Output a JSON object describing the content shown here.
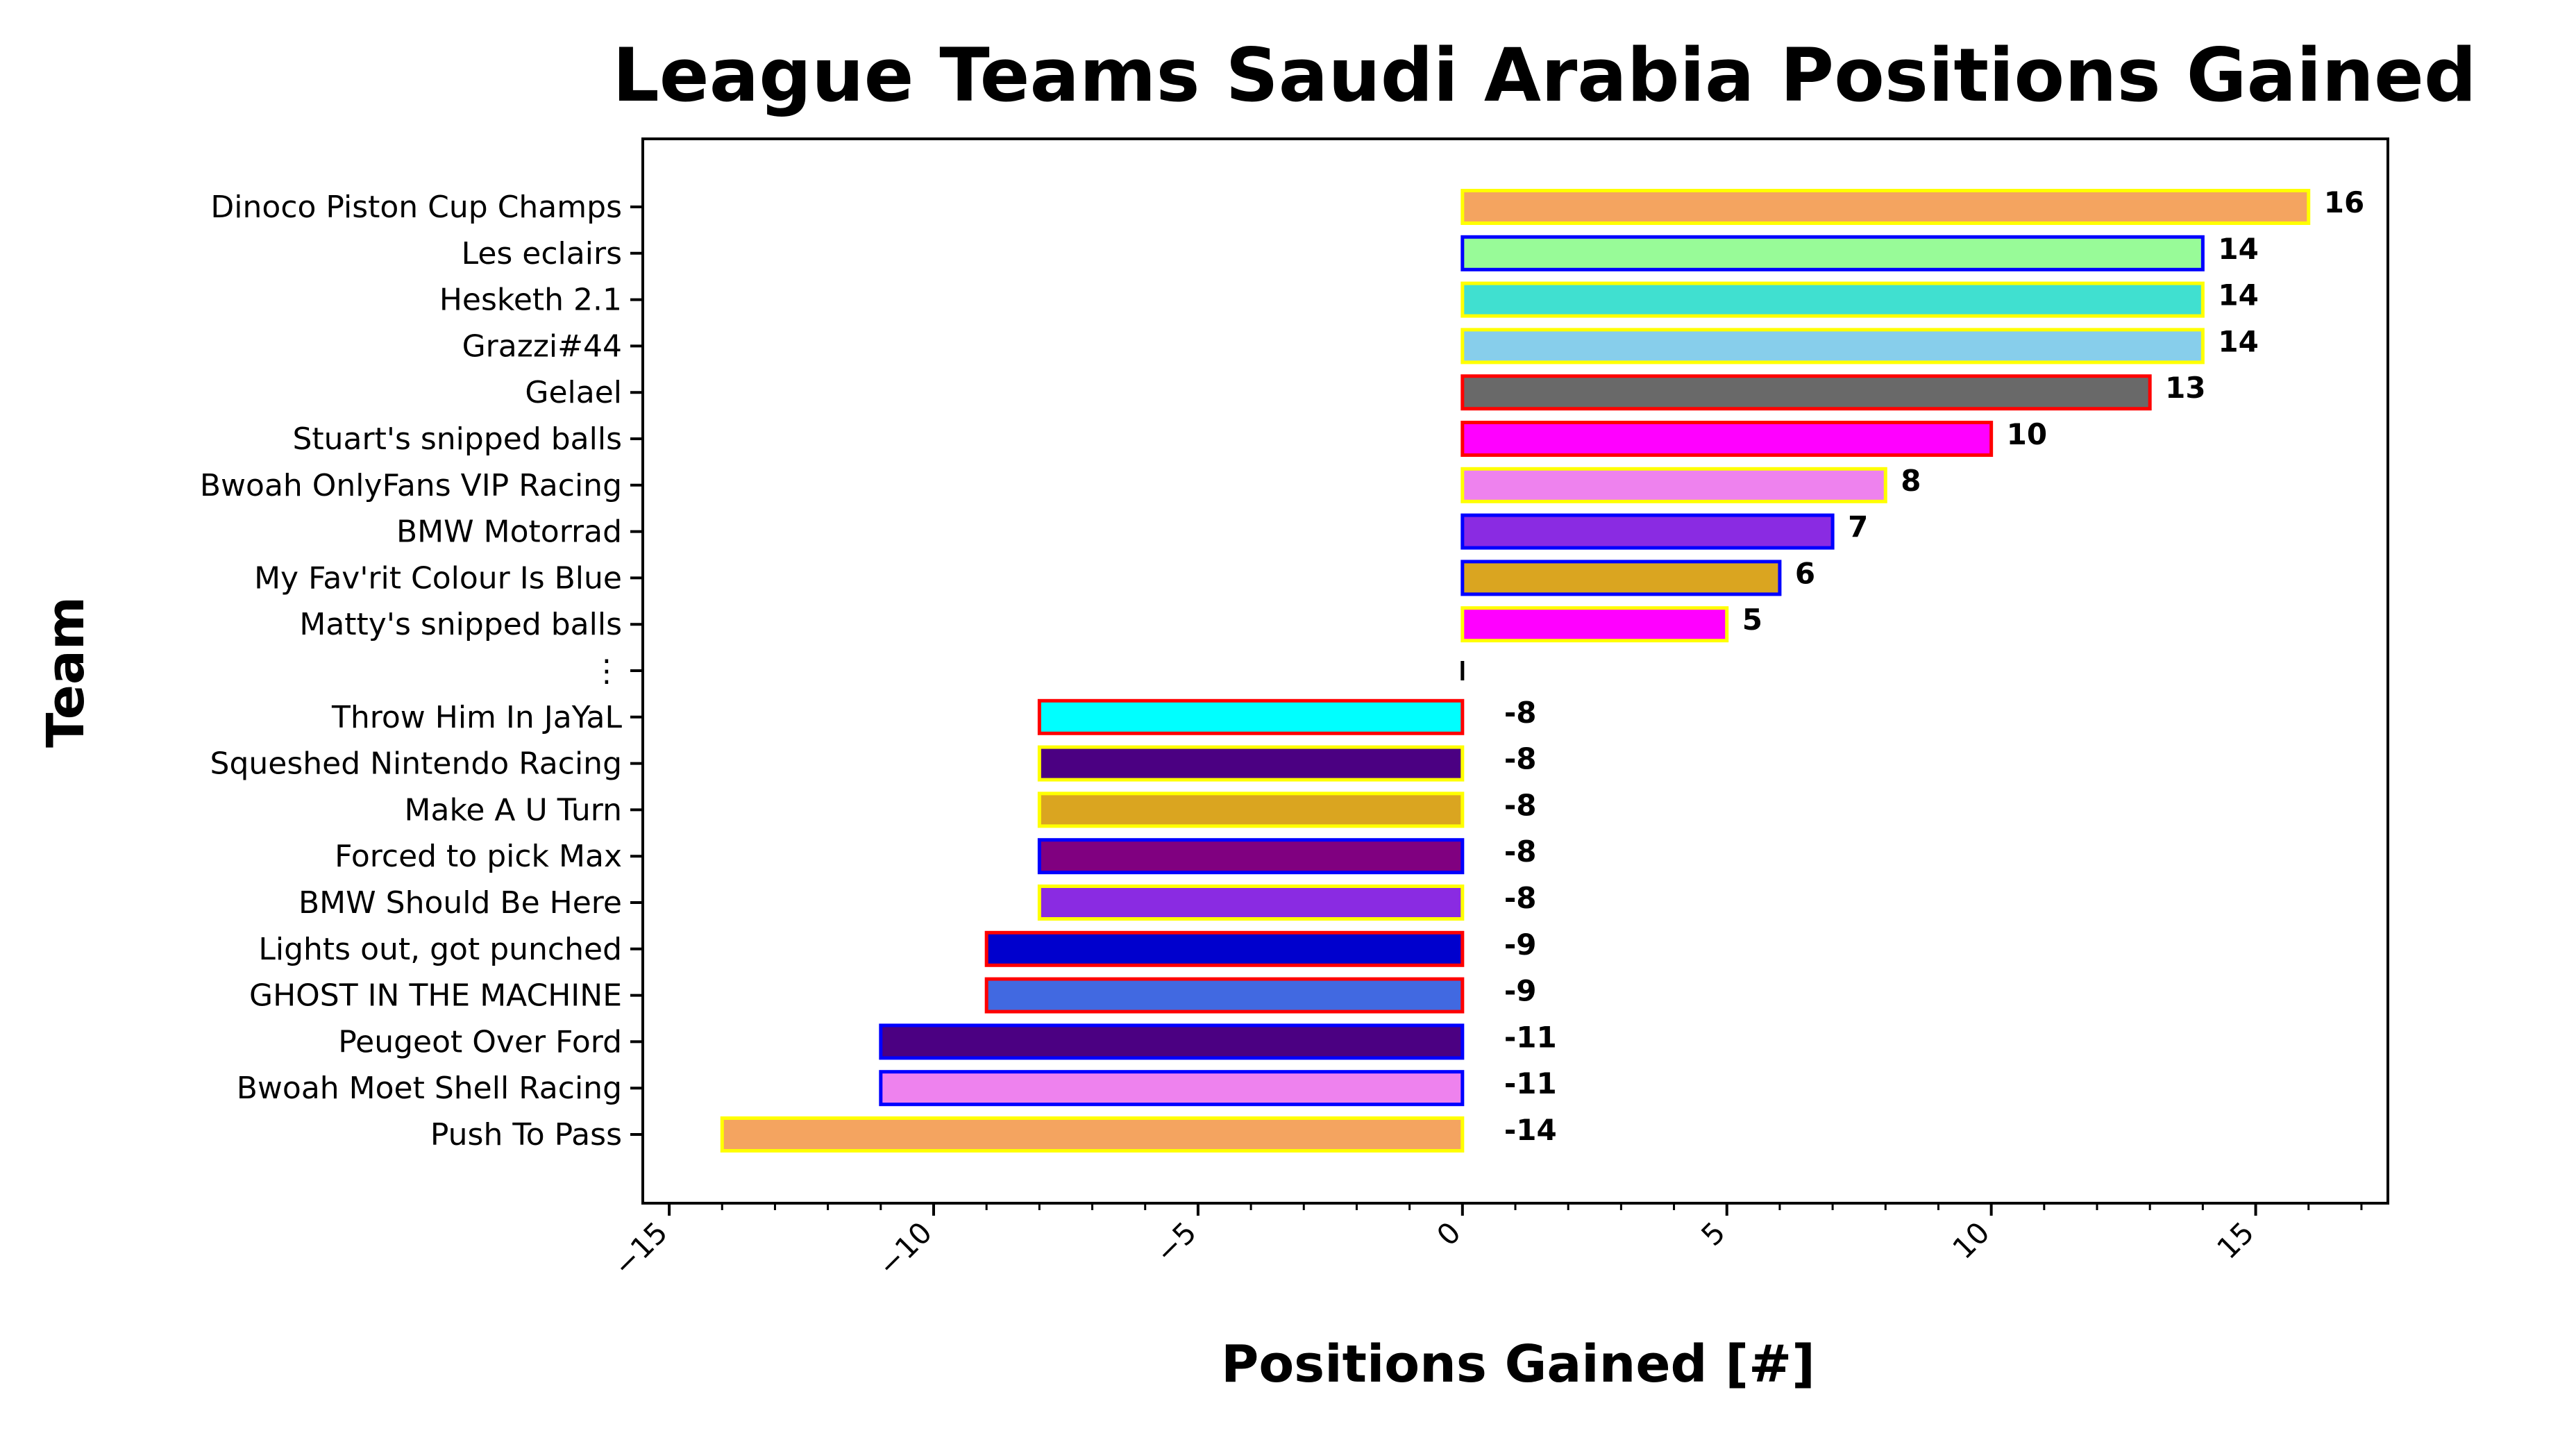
{
  "chart_data": {
    "type": "bar",
    "orientation": "horizontal",
    "title": "League Teams Saudi Arabia Positions Gained",
    "xlabel": "Positions Gained [#]",
    "ylabel": "Team",
    "xlim": [
      -15.5,
      17.5
    ],
    "xticks": [
      -15,
      -10,
      -5,
      0,
      5,
      10,
      15
    ],
    "xtick_labels": [
      "−15",
      "−10",
      "−5",
      "0",
      "5",
      "10",
      "15"
    ],
    "grid": false,
    "legend": "none",
    "categories": [
      "Dinoco Piston Cup Champs",
      "Les eclairs",
      "Hesketh 2.1",
      "Grazzi#44",
      "Gelael",
      "Stuart's snipped balls",
      "Bwoah OnlyFans VIP Racing",
      "BMW Motorrad",
      "My Fav'rit Colour Is Blue",
      "Matty's snipped balls",
      "⋮",
      "Throw Him In JaYaL",
      "Squeshed Nintendo Racing",
      "Make A U Turn",
      "Forced to pick Max",
      "BMW Should Be Here",
      "Lights out, got punched",
      "GHOST IN THE MACHINE",
      "Peugeot Over Ford",
      "Bwoah Moet Shell Racing",
      "Push To Pass"
    ],
    "values": [
      16,
      14,
      14,
      14,
      13,
      10,
      8,
      7,
      6,
      5,
      0,
      -8,
      -8,
      -8,
      -8,
      -8,
      -9,
      -9,
      -11,
      -11,
      -14
    ],
    "value_labels": [
      "16",
      "14",
      "14",
      "14",
      "13",
      "10",
      "8",
      "7",
      "6",
      "5",
      "",
      "-8",
      "-8",
      "-8",
      "-8",
      "-8",
      "-9",
      "-9",
      "-11",
      "-11",
      "-14"
    ],
    "fill_colors": [
      "#F4A460",
      "#98FB98",
      "#40E0D0",
      "#87CEEB",
      "#696969",
      "#FF00FF",
      "#EE82EE",
      "#8A2BE2",
      "#DAA520",
      "#FF00FF",
      "#000000",
      "#00FFFF",
      "#4B0082",
      "#DAA520",
      "#800080",
      "#8A2BE2",
      "#0000CD",
      "#4169E1",
      "#4B0082",
      "#EE82EE",
      "#F4A460"
    ],
    "edge_colors": [
      "#FFFF00",
      "#0000FF",
      "#FFFF00",
      "#FFFF00",
      "#FF0000",
      "#FF0000",
      "#FFFF00",
      "#0000FF",
      "#0000FF",
      "#FFFF00",
      "#000000",
      "#FF0000",
      "#FFFF00",
      "#FFFF00",
      "#0000FF",
      "#FFFF00",
      "#FF0000",
      "#FF0000",
      "#0000FF",
      "#0000FF",
      "#FFFF00"
    ]
  }
}
